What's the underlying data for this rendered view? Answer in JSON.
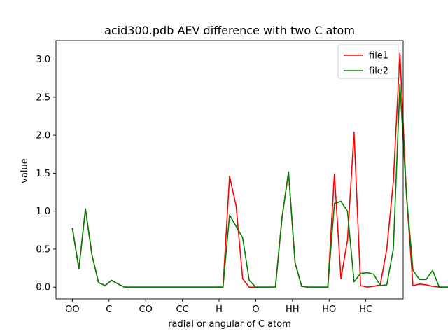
{
  "chart_data": {
    "type": "line",
    "title": "acid300.pdb AEV difference with two C atom",
    "xlabel": "radial or angular of C atom",
    "ylabel": "value",
    "xlim": [
      -2.5,
      50.5
    ],
    "ylim": [
      -0.155,
      3.245
    ],
    "x_ticks": [
      {
        "value": 0,
        "label": "OO"
      },
      {
        "value": 5.6,
        "label": "C"
      },
      {
        "value": 11.2,
        "label": "CO"
      },
      {
        "value": 16.8,
        "label": "CC"
      },
      {
        "value": 22.4,
        "label": "H"
      },
      {
        "value": 28.0,
        "label": "O"
      },
      {
        "value": 33.6,
        "label": "HH"
      },
      {
        "value": 39.2,
        "label": "HO"
      },
      {
        "value": 44.8,
        "label": "HC"
      }
    ],
    "y_ticks": [
      {
        "value": 0.0,
        "label": "0.0"
      },
      {
        "value": 0.5,
        "label": "0.5"
      },
      {
        "value": 1.0,
        "label": "1.0"
      },
      {
        "value": 1.5,
        "label": "1.5"
      },
      {
        "value": 2.0,
        "label": "2.0"
      },
      {
        "value": 2.5,
        "label": "2.5"
      },
      {
        "value": 3.0,
        "label": "3.0"
      }
    ],
    "legend": {
      "position": "top-right"
    },
    "grid": false,
    "series": [
      {
        "name": "file1",
        "color": "#ff0000",
        "values": [
          0.78,
          0.24,
          1.03,
          0.42,
          0.06,
          0.02,
          0.09,
          0.04,
          0,
          0,
          0,
          0,
          0,
          0,
          0,
          0,
          0,
          0,
          0,
          0,
          0,
          0,
          0,
          0,
          1.46,
          1.07,
          0.11,
          0,
          0,
          0,
          0,
          0,
          0.91,
          1.51,
          0.32,
          0.01,
          0,
          0,
          0,
          0,
          1.49,
          0.11,
          0.62,
          2.04,
          0.02,
          0,
          0.01,
          0.03,
          0.5,
          1.39,
          3.08,
          1.21,
          0.02,
          0.04,
          0.03,
          0.01,
          0,
          0,
          0,
          0,
          0,
          0,
          0,
          0,
          0,
          0,
          0,
          0,
          0,
          0,
          0,
          0,
          0
        ]
      },
      {
        "name": "file2",
        "color": "#008000",
        "values": [
          0.78,
          0.24,
          1.03,
          0.42,
          0.06,
          0.02,
          0.09,
          0.04,
          0,
          0,
          0,
          0,
          0,
          0,
          0,
          0,
          0,
          0,
          0,
          0,
          0,
          0,
          0,
          0,
          0.95,
          0.8,
          0.65,
          0.09,
          0,
          0,
          0,
          0,
          0.91,
          1.52,
          0.32,
          0.01,
          0,
          0,
          0,
          0,
          1.1,
          1.13,
          1.0,
          0.07,
          0.18,
          0.19,
          0.17,
          0.02,
          0.03,
          0.5,
          2.67,
          1.21,
          0.22,
          0.1,
          0.1,
          0.22,
          0,
          0,
          0,
          0,
          0,
          0,
          0,
          0,
          0,
          0,
          0,
          0,
          0,
          0,
          0,
          0,
          0
        ]
      }
    ]
  }
}
